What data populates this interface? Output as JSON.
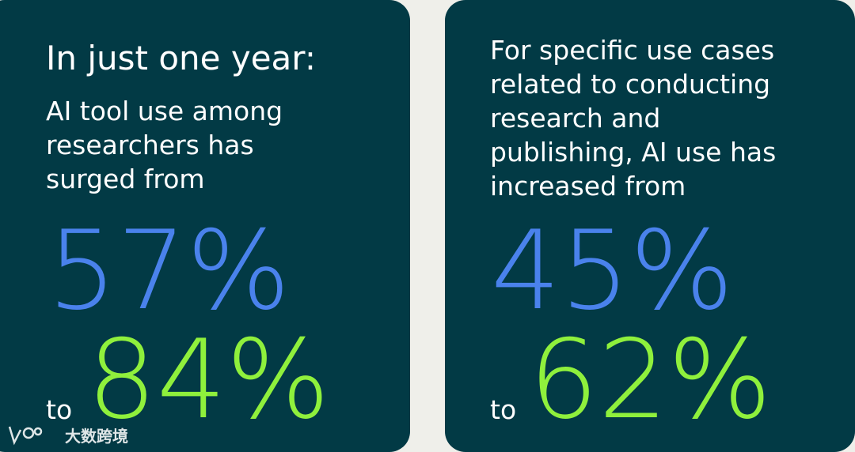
{
  "cards": [
    {
      "heading": "In just one year:",
      "body_lines": [
        "AI tool use among",
        "researchers has",
        "surged from"
      ],
      "from_value": "57%",
      "to_word": "to",
      "to_value": "84%"
    },
    {
      "body_lines": [
        "For specific use cases",
        "related to conducting",
        "research and",
        "publishing, AI use has",
        "increased from"
      ],
      "from_value": "45%",
      "to_word": "to",
      "to_value": "62%"
    }
  ],
  "watermark": {
    "text": "大数跨境"
  }
}
